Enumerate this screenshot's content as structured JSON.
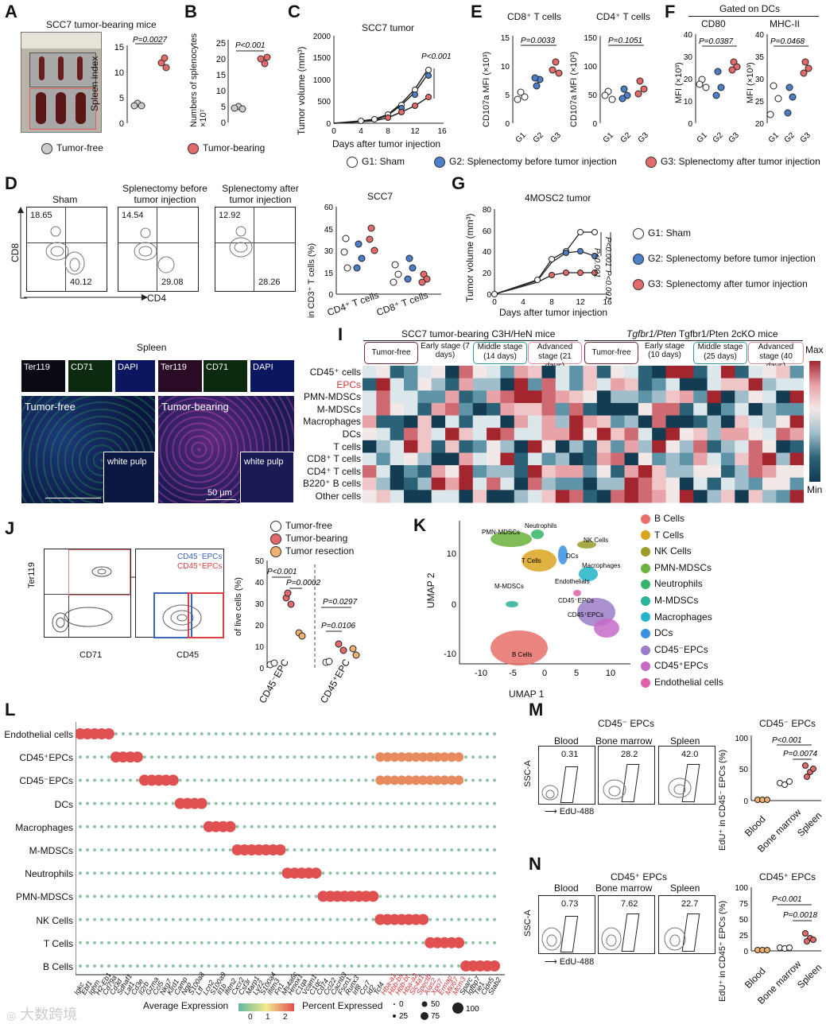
{
  "panelA": {
    "letter": "A",
    "title": "SCC7 tumor-bearing mice",
    "ylabel": "Spleen index",
    "p": "P=0.0027",
    "yticks": [
      "0",
      "5",
      "10",
      "15"
    ]
  },
  "panelB": {
    "letter": "B",
    "ylabel": "Numbers of splenocytes ×10⁷",
    "p": "P<0.001",
    "yticks": [
      "0",
      "5",
      "10",
      "15",
      "20",
      "25"
    ]
  },
  "legendAB": {
    "free": "Tumor-free",
    "bearing": "Tumor-bearing"
  },
  "panelC": {
    "letter": "C",
    "title": "SCC7 tumor",
    "ylabel": "Tumor volume (mm³)",
    "xlabel": "Days after tumor injection",
    "p": "P<0.001",
    "yticks": [
      "0",
      "500",
      "1000",
      "1500",
      "2000"
    ],
    "xticks": [
      "0",
      "4",
      "8",
      "12",
      "16"
    ]
  },
  "panelE": {
    "letter": "E",
    "t1": "CD8⁺ T cells",
    "t2": "CD4⁺ T cells",
    "y1": "CD107a MFI (×10³)",
    "y2": "CD107a MFI (×10²)",
    "p1": "P=0.0033",
    "p2": "P=0.1051",
    "y1ticks": [
      "0",
      "5",
      "10",
      "15"
    ],
    "y2ticks": [
      "0",
      "50",
      "100",
      "150"
    ],
    "g": [
      "G1",
      "G2",
      "G3"
    ]
  },
  "panelF": {
    "letter": "F",
    "gated": "Gated on DCs",
    "t1": "CD80",
    "t2": "MHC-II",
    "y1": "MFI (×10³)",
    "y2": "MFI (×10³)",
    "p1": "P=0.0387",
    "p2": "P=0.0468",
    "y1ticks": [
      "0",
      "10",
      "20",
      "30",
      "40"
    ],
    "y2ticks": [
      "20",
      "25",
      "30",
      "35",
      "40"
    ],
    "g": [
      "G1",
      "G2",
      "G3"
    ]
  },
  "legendG": {
    "g1": "G1: Sham",
    "g2": "G2: Splenectomy before tumor injection",
    "g3": "G3: Splenectomy after tumor injection"
  },
  "panelD": {
    "letter": "D",
    "plots": [
      {
        "title": "Sham",
        "q1": "18.65",
        "q2": "40.12"
      },
      {
        "title": "Splenectomy before tumor injection",
        "q1": "14.54",
        "q2": "29.08"
      },
      {
        "title": "Splenectomy after tumor injection",
        "q1": "12.92",
        "q2": "28.26"
      }
    ],
    "xlabel": "CD4",
    "ylabel": "CD8",
    "chart_title": "SCC7",
    "chart_ylabel": "in CD3⁺ T cells (%)",
    "chart_x": [
      "CD4⁺ T cells",
      "CD8⁺ T cells"
    ],
    "chart_yticks": [
      "0",
      "15",
      "30",
      "45",
      "60"
    ]
  },
  "panelG": {
    "letter": "G",
    "title": "4MOSC2 tumor",
    "ylabel": "Tumor volume (mm³)",
    "xlabel": "Days after tumor injection",
    "p1": "P<0.001",
    "p2": "P<0.001",
    "p3": "P<0.001",
    "yticks": [
      "0",
      "20",
      "40",
      "60",
      "80"
    ],
    "xticks": [
      "0",
      "4",
      "8",
      "12",
      "16"
    ],
    "legend": [
      "G1: Sham",
      "G2: Splenectomy before tumor injection",
      "G3: Splenectomy after tumor injection"
    ]
  },
  "panelH": {
    "title": "Spleen",
    "channels": [
      "Ter119",
      "CD71",
      "DAPI",
      "Ter119",
      "CD71",
      "DAPI"
    ],
    "free": "Tumor-free",
    "bearing": "Tumor-bearing",
    "wp": "white pulp",
    "scale": "50 μm"
  },
  "panelI": {
    "letter": "I",
    "group1": "SCC7 tumor-bearing C3H/HeN mice",
    "group2": "Tgfbr1/Pten 2cKO mice",
    "stages1": [
      "Tumor-free",
      "Early stage (7 days)",
      "Middle stage (14 days)",
      "Advanced stage (21 days)"
    ],
    "stages2": [
      "Tumor-free",
      "Early stage (10 days)",
      "Middle stage (25 days)",
      "Advanced stage (40 days)"
    ],
    "rows": [
      "CD45⁺ cells",
      "EPCs",
      "PMN-MDSCs",
      "M-MDSCs",
      "Macrophages",
      "DCs",
      "T cells",
      "CD8⁺ T cells",
      "CD4⁺ T cells",
      "B220⁺ B cells",
      "Other cells"
    ],
    "max": "Max",
    "min": "Min"
  },
  "panelJ": {
    "letter": "J",
    "yl": "Ter119",
    "xl": "CD71",
    "xl2": "CD45",
    "gate1": "CD45⁻EPCs",
    "gate2": "CD45⁺EPCs",
    "legend": [
      "Tumor-free",
      "Tumor-bearing",
      "Tumor resection"
    ],
    "ylabel": "of live cells (%)",
    "p": [
      "P<0.001",
      "P=0.0002",
      "P=0.0297",
      "P=0.0106"
    ],
    "x": [
      "CD45⁻EPC",
      "CD45⁺EPC"
    ],
    "yticks": [
      "0",
      "10",
      "20",
      "30",
      "40",
      "50"
    ]
  },
  "panelK": {
    "letter": "K",
    "xlabel": "UMAP 1",
    "ylabel": "UMAP 2",
    "xticks": [
      "-10",
      "-5",
      "0",
      "5",
      "10"
    ],
    "yticks": [
      "-10",
      "0",
      "10"
    ],
    "clusters": [
      "PMN-MDSCs",
      "Neutrophils",
      "NK Cells",
      "T Cells",
      "DCs",
      "Endothelials",
      "Macrophages",
      "M-MDSCs",
      "CD45⁻EPCs",
      "CD45⁺EPCs",
      "B Cells"
    ],
    "legend": [
      {
        "label": "B Cells",
        "color": "#e8706a"
      },
      {
        "label": "T Cells",
        "color": "#d9a520"
      },
      {
        "label": "NK Cells",
        "color": "#9b9a2a"
      },
      {
        "label": "PMN-MDSCs",
        "color": "#6ab23b"
      },
      {
        "label": "Neutrophils",
        "color": "#35b46a"
      },
      {
        "label": "M-MDSCs",
        "color": "#2bb39b"
      },
      {
        "label": "Macrophages",
        "color": "#22b4c8"
      },
      {
        "label": "DCs",
        "color": "#3a8fe0"
      },
      {
        "label": "CD45⁻EPCs",
        "color": "#9c7cc8"
      },
      {
        "label": "CD45⁺EPCs",
        "color": "#c76bc9"
      },
      {
        "label": "Endothelial cells",
        "color": "#e05fa8"
      }
    ]
  },
  "panelL": {
    "letter": "L",
    "rows": [
      "Endothelial cells",
      "CD45⁺EPCs",
      "CD45⁻EPCs",
      "DCs",
      "Macrophages",
      "M-MDSCs",
      "Neutrophils",
      "PMN-MDSCs",
      "NK Cells",
      "T Cells",
      "B Cells"
    ],
    "genes": [
      "Igkc",
      "Ebf1",
      "Ighm",
      "H2-Eb1",
      "Cd79a",
      "Cd3d",
      "Sdhaf1",
      "Lat1",
      "Cd3e",
      "Il2rb",
      "Gzma",
      "Ccl5",
      "Nkg7",
      "Klrd1",
      "Camp",
      "Ngp",
      "S100a8",
      "Ltf",
      "Lcn2",
      "S100a9",
      "Il1b",
      "Ifitm2",
      "Cxcr2",
      "Csf3r",
      "Marp1",
      "Lyz2",
      "S100a4",
      "Ifitm3",
      "Fn1",
      "Ms4a6c",
      "Hmox1",
      "C1qa",
      "Vcam1",
      "C1qc",
      "Cd74",
      "Ccl22",
      "Cacnb3",
      "Fscn1",
      "Runx3",
      "Irf8",
      "Ccr7",
      "Id2",
      "Tcf4",
      "Hba-a1",
      "Hbb-bs",
      "Hbb-bt",
      "Hba-a2",
      "Slc4a1",
      "Spectb",
      "Alas2",
      "Xpo7",
      "Ermap",
      "Mki67",
      "Mcm3",
      "Sparc",
      "Igfbp7",
      "Tie1",
      "Cldn5",
      "Stab2"
    ],
    "avg_label": "Average Expression",
    "avg_ticks": [
      "0",
      "1",
      "2"
    ],
    "pct_label": "Percent Expressed",
    "pct_ticks": [
      "0",
      "25",
      "50",
      "75",
      "100"
    ]
  },
  "panelM": {
    "letter": "M",
    "title": "CD45⁻ EPCs",
    "plots": [
      {
        "t": "Blood",
        "v": "0.31"
      },
      {
        "t": "Bone marrow",
        "v": "28.2"
      },
      {
        "t": "Spleen",
        "v": "42.0"
      }
    ],
    "yl": "SSC-A",
    "xl": "EdU-488",
    "chart_title": "CD45⁻ EPCs",
    "chart_ylabel": "EdU⁺ in CD45⁻ EPCs (%)",
    "p1": "P<0.001",
    "p2": "P=0.0074",
    "yticks": [
      "0",
      "50",
      "100"
    ],
    "x": [
      "Blood",
      "Bone marrow",
      "Spleen"
    ]
  },
  "panelN": {
    "letter": "N",
    "title": "CD45⁺ EPCs",
    "plots": [
      {
        "t": "Blood",
        "v": "0.73"
      },
      {
        "t": "Bone marrow",
        "v": "7.62"
      },
      {
        "t": "Spleen",
        "v": "22.7"
      }
    ],
    "yl": "SSC-A",
    "xl": "EdU-488",
    "chart_title": "CD45⁺ EPCs",
    "chart_ylabel": "EdU⁺ in CD45⁺ EPCs (%)",
    "p1": "P<0.001",
    "p2": "P=0.0018",
    "yticks": [
      "0",
      "25",
      "50",
      "75",
      "100"
    ],
    "x": [
      "Blood",
      "Bone marrow",
      "Spleen"
    ]
  },
  "watermark": "大数跨境",
  "chart_data": [
    {
      "type": "scatter",
      "title": "Spleen index",
      "categories": [
        "Tumor-free",
        "Tumor-bearing"
      ],
      "values": [
        3.9,
        11.3
      ],
      "ylim": [
        0,
        15
      ]
    },
    {
      "type": "scatter",
      "title": "Numbers of splenocytes",
      "categories": [
        "Tumor-free",
        "Tumor-bearing"
      ],
      "values": [
        5.0,
        20.2
      ],
      "ylim": [
        0,
        25
      ]
    },
    {
      "type": "line",
      "title": "SCC7 tumor",
      "x": [
        0,
        4,
        6,
        8,
        10,
        12,
        14
      ],
      "series": [
        {
          "name": "G1",
          "values": [
            0,
            40,
            90,
            200,
            450,
            800,
            1250
          ]
        },
        {
          "name": "G2",
          "values": [
            0,
            35,
            80,
            180,
            400,
            750,
            1150
          ]
        },
        {
          "name": "G3",
          "values": [
            0,
            30,
            60,
            120,
            250,
            400,
            600
          ]
        }
      ],
      "ylim": [
        0,
        2000
      ]
    },
    {
      "type": "line",
      "title": "4MOSC2 tumor",
      "x": [
        0,
        6,
        8,
        10,
        12,
        14
      ],
      "series": [
        {
          "name": "G1",
          "values": [
            0,
            13,
            33,
            40,
            58,
            58
          ]
        },
        {
          "name": "G2",
          "values": [
            0,
            13,
            30,
            38,
            40,
            35
          ]
        },
        {
          "name": "G3",
          "values": [
            0,
            11,
            18,
            20,
            20,
            20
          ]
        }
      ],
      "ylim": [
        0,
        80
      ]
    }
  ]
}
